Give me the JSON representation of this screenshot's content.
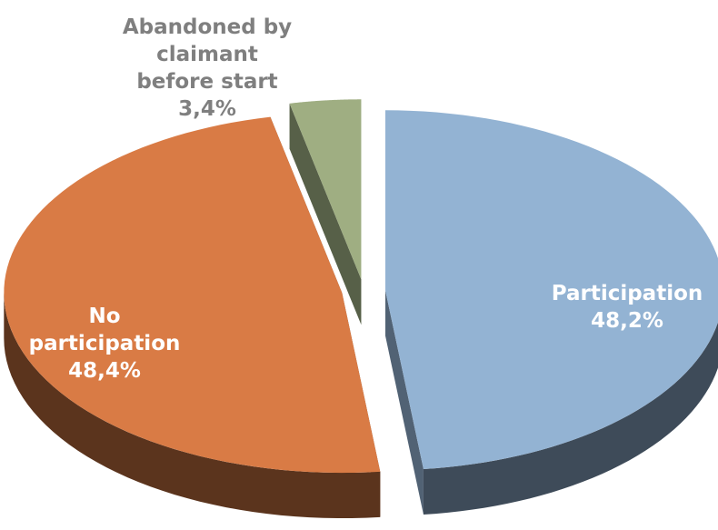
{
  "chart_data": {
    "type": "pie",
    "categories": [
      "Participation",
      "No participation",
      "Abandoned by claimant before start"
    ],
    "values": [
      48.2,
      48.4,
      3.4
    ],
    "value_labels": [
      "48,2%",
      "48,4%",
      "3,4%"
    ],
    "colors": [
      "#93b3d3",
      "#d97b45",
      "#9fae82"
    ]
  }
}
